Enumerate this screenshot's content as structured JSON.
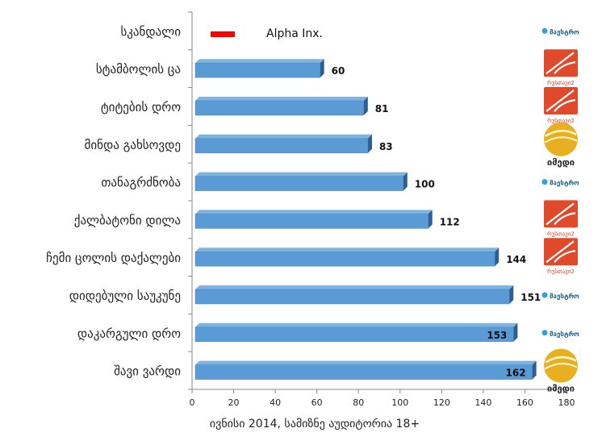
{
  "chart_data": {
    "type": "bar",
    "orientation": "horizontal",
    "categories": [
      "შავი ვარდი",
      "დაკარგული დრო",
      "დიდებული საუკუნე",
      "ჩემი ცოლის დაქალები",
      "ქალბატონი დილა",
      "თანაგრძნობა",
      "მინდა გახსოვდე",
      "ტიტების დრო",
      "სტამბოლის ცა",
      "სკანდალი"
    ],
    "series": [
      {
        "name": "Alpha Inx.",
        "values": [
          162,
          153,
          151,
          144,
          112,
          100,
          83,
          81,
          60,
          null
        ]
      }
    ],
    "data_labels": [
      "162",
      "153",
      "151",
      "144",
      "112",
      "100",
      "83",
      "81",
      "60",
      ""
    ],
    "channels": [
      "imedi",
      "maestro",
      "maestro",
      "rustavi2",
      "rustavi2",
      "maestro",
      "imedi",
      "rustavi2",
      "rustavi2",
      "maestro"
    ],
    "channel_logo_text": {
      "imedi": "იმედი",
      "maestro": "მაესტრო",
      "rustavi2": "რუსთავი2"
    },
    "xlabel": "ივნისი 2014, სამიზნე აუდიტორია 18+",
    "xlim": [
      0,
      180
    ],
    "xticks": [
      0,
      20,
      40,
      60,
      80,
      100,
      120,
      140,
      160,
      180
    ],
    "legend_position": "top",
    "grid": false,
    "colors": {
      "bar_front": "#5B9BD5",
      "bar_top": "#7FB3E0",
      "bar_side": "#2E5E8E",
      "legend_swatch": "#FF0000",
      "axis": "#888888",
      "imedi": "#E8B020",
      "maestro": "#2AA5D8",
      "rustavi2": "#E04A2A"
    }
  }
}
